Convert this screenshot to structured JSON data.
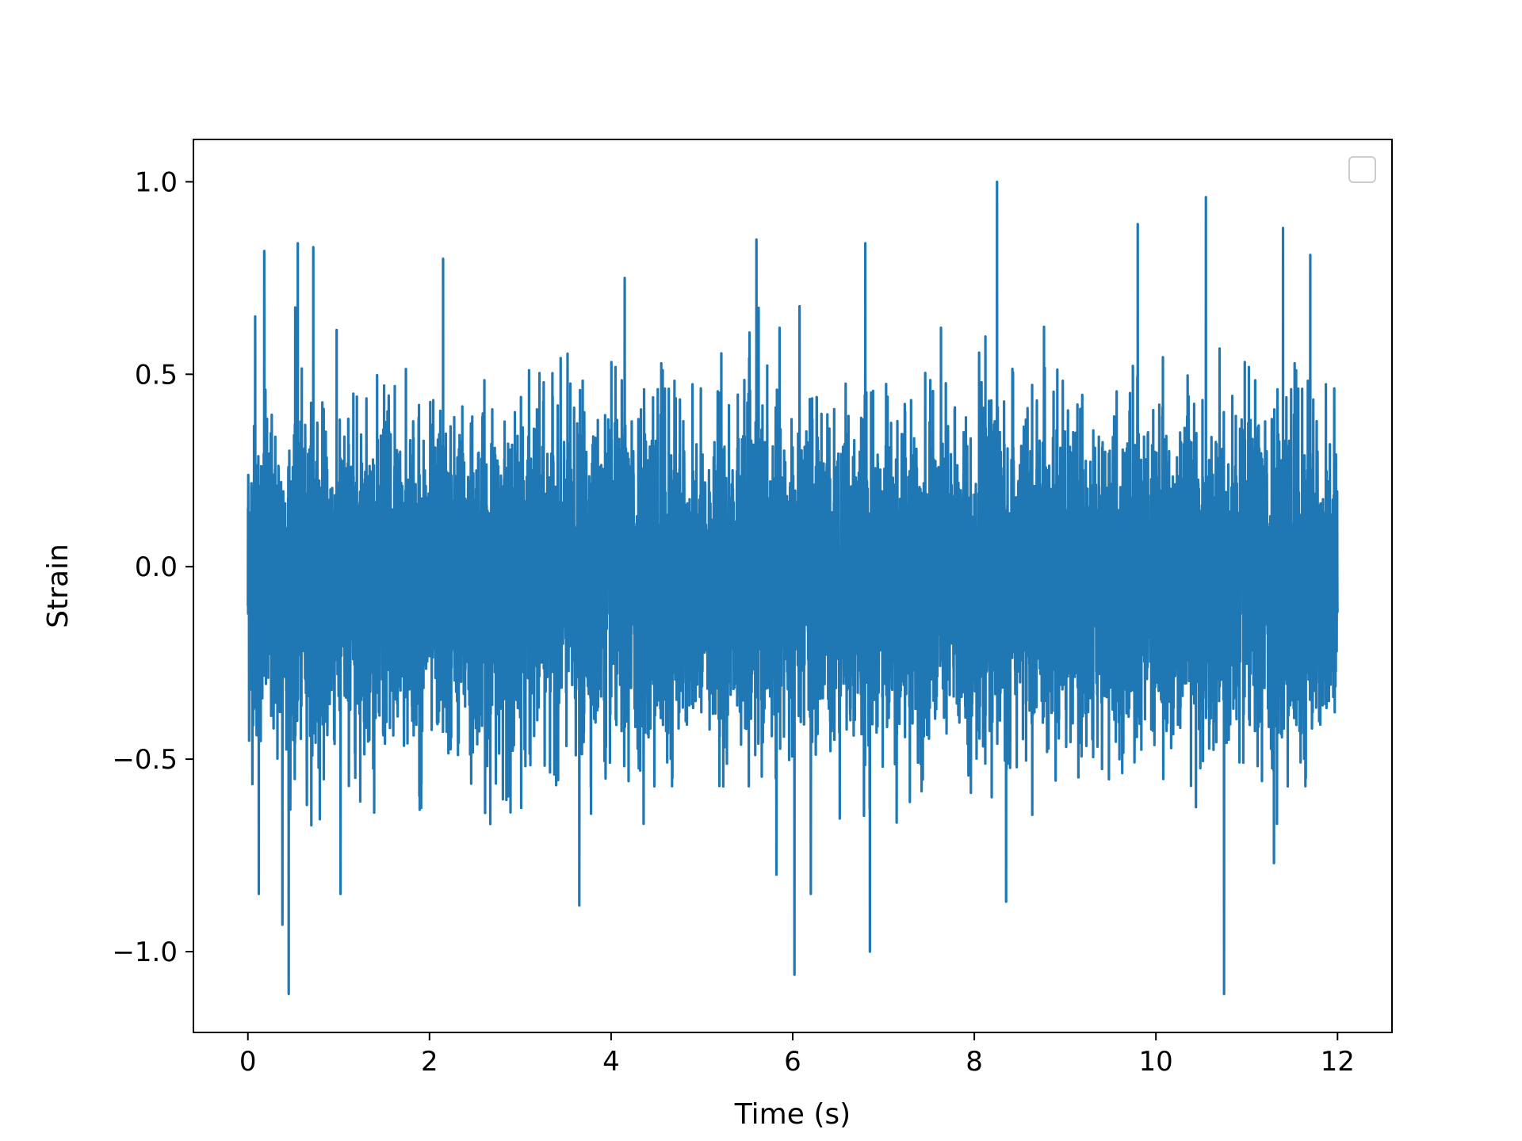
{
  "chart_data": {
    "type": "line",
    "title": "",
    "xlabel": "Time (s)",
    "ylabel": "Strain",
    "xlim": [
      -0.6,
      12.6
    ],
    "ylim": [
      -1.21,
      1.11
    ],
    "x_ticks": [
      0,
      2,
      4,
      6,
      8,
      10,
      12
    ],
    "x_tick_labels": [
      "0",
      "2",
      "4",
      "6",
      "8",
      "10",
      "12"
    ],
    "y_ticks": [
      -1.0,
      -0.5,
      0.0,
      0.5,
      1.0
    ],
    "y_tick_labels": [
      "−1.0",
      "−0.5",
      "0.0",
      "0.5",
      "1.0"
    ],
    "grid": false,
    "legend": {
      "placement": "top-right",
      "entries": []
    },
    "series": [
      {
        "color": "#1f77b4",
        "x_start": 0,
        "x_end": 12,
        "typical_range": [
          -0.55,
          0.55
        ],
        "peaks": [
          {
            "x": 0.08,
            "y": 0.65
          },
          {
            "x": 0.12,
            "y": -0.85
          },
          {
            "x": 0.18,
            "y": 0.82
          },
          {
            "x": 0.38,
            "y": -0.93
          },
          {
            "x": 0.45,
            "y": -1.11
          },
          {
            "x": 0.55,
            "y": 0.84
          },
          {
            "x": 0.72,
            "y": 0.83
          },
          {
            "x": 1.02,
            "y": -0.85
          },
          {
            "x": 2.15,
            "y": 0.8
          },
          {
            "x": 3.65,
            "y": -0.88
          },
          {
            "x": 4.15,
            "y": 0.75
          },
          {
            "x": 5.6,
            "y": 0.85
          },
          {
            "x": 5.82,
            "y": -0.8
          },
          {
            "x": 6.02,
            "y": -1.06
          },
          {
            "x": 6.2,
            "y": -0.85
          },
          {
            "x": 6.8,
            "y": 0.84
          },
          {
            "x": 6.85,
            "y": -1.0
          },
          {
            "x": 8.25,
            "y": 1.0
          },
          {
            "x": 8.35,
            "y": -0.87
          },
          {
            "x": 9.8,
            "y": 0.89
          },
          {
            "x": 10.55,
            "y": 0.96
          },
          {
            "x": 10.75,
            "y": -1.11
          },
          {
            "x": 11.4,
            "y": 0.88
          },
          {
            "x": 11.7,
            "y": 0.81
          },
          {
            "x": 11.3,
            "y": -0.77
          }
        ]
      }
    ]
  }
}
